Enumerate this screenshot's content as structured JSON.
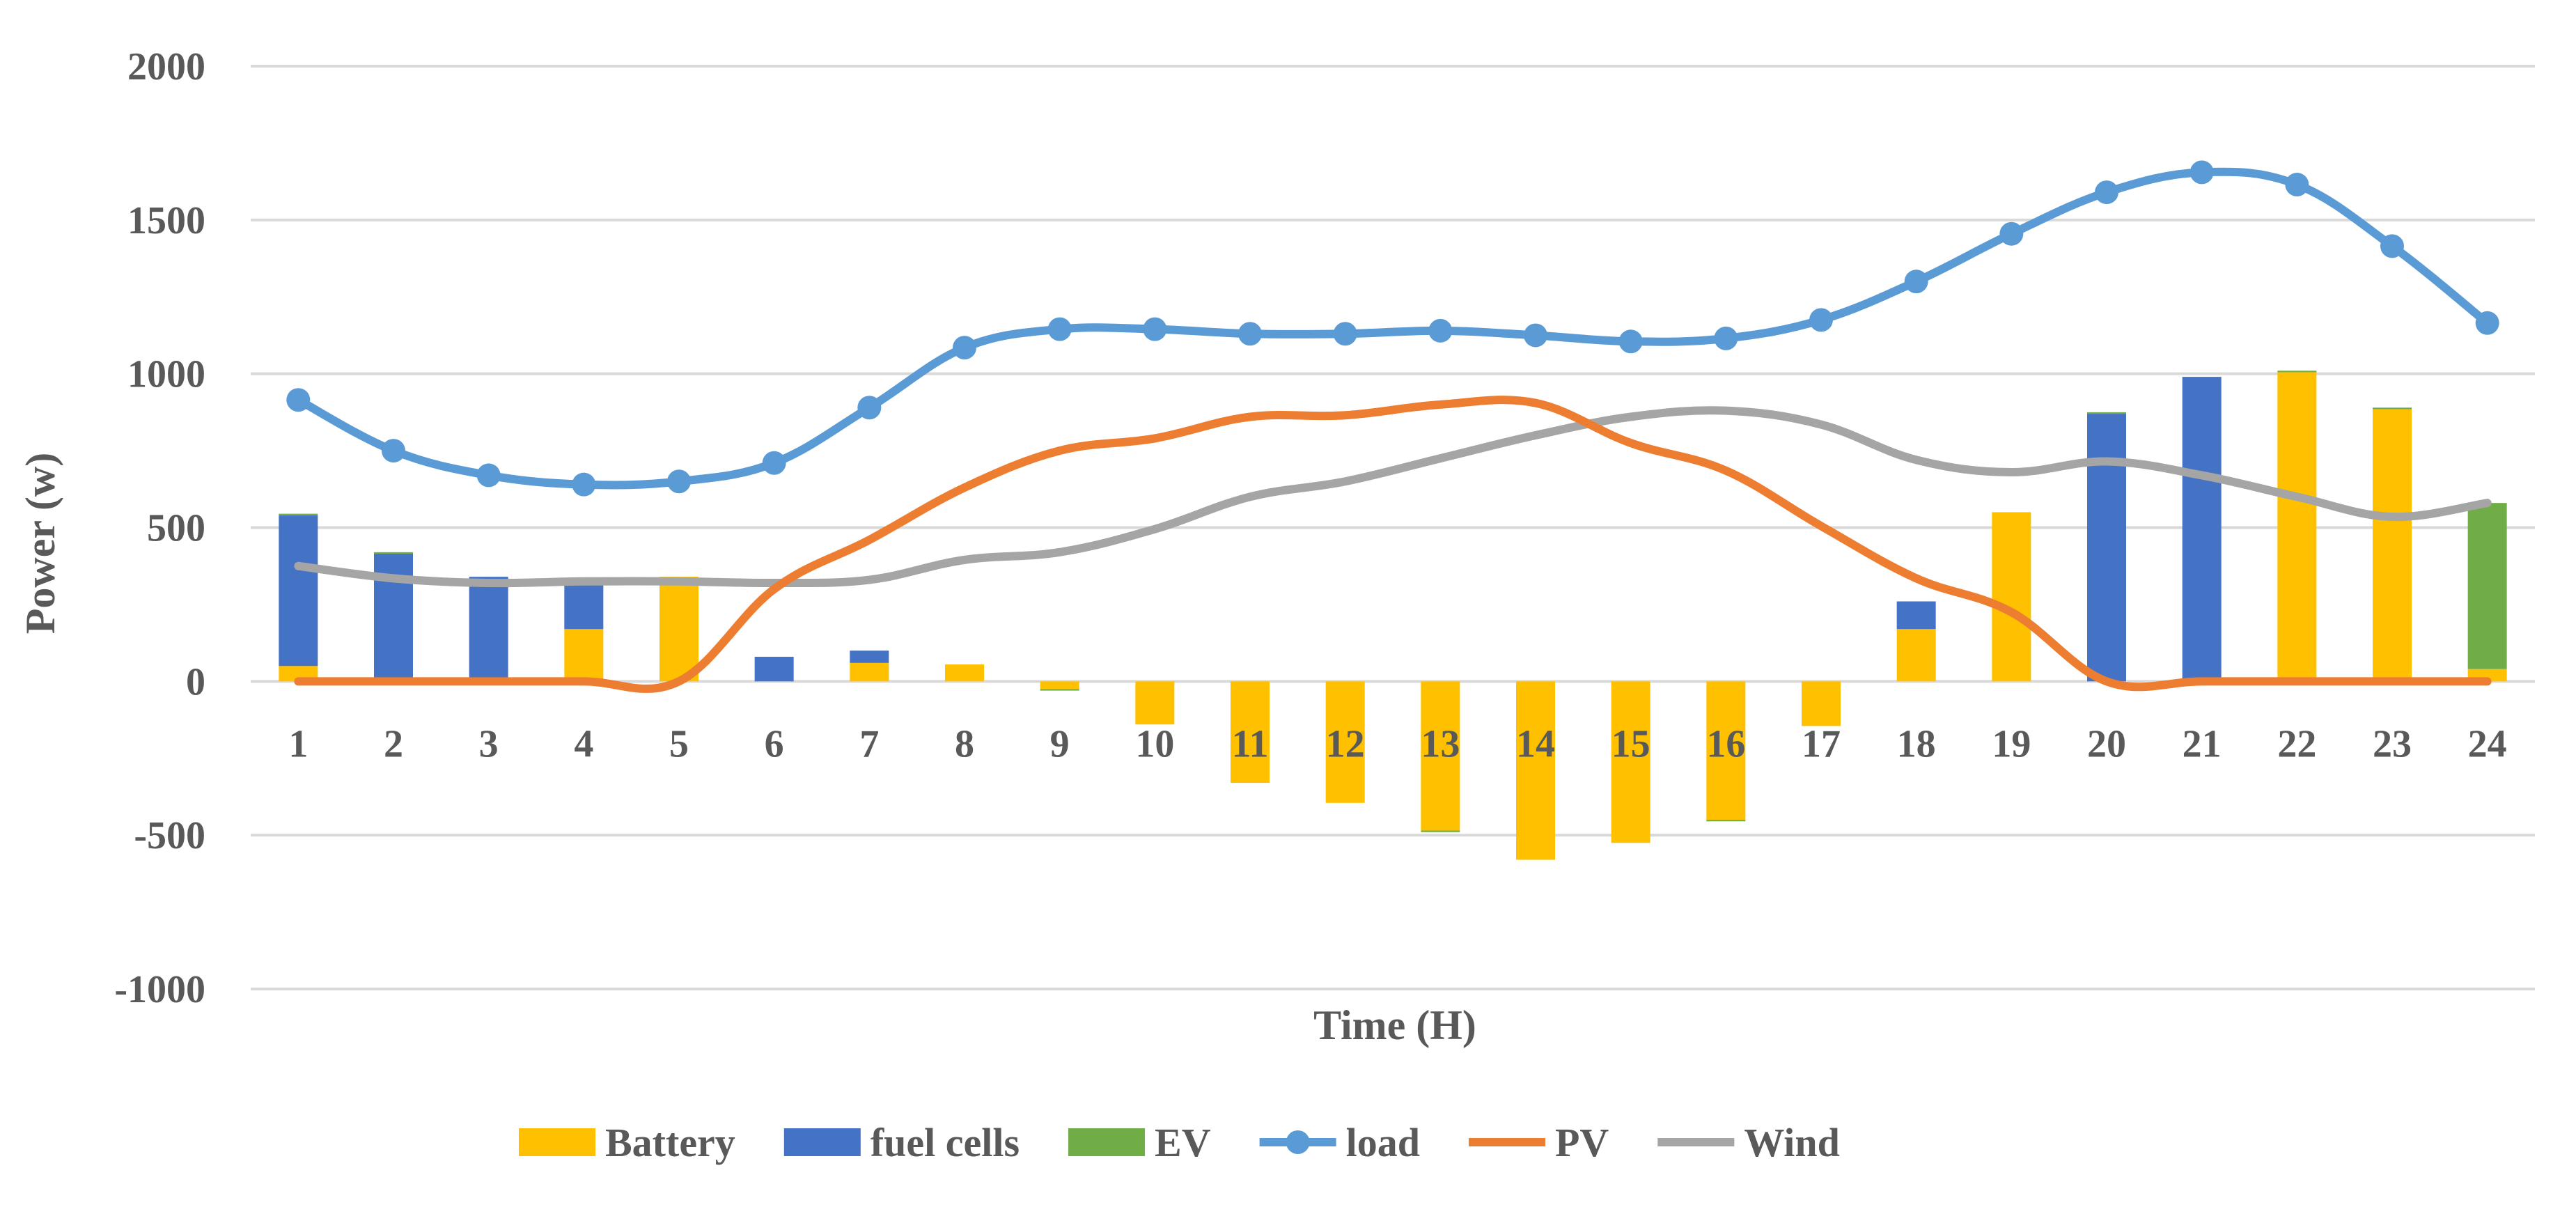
{
  "chart_data": {
    "type": "bar",
    "stacked": true,
    "title": "",
    "xlabel": "Time (H)",
    "ylabel": "Power (w)",
    "ylim": [
      -1000,
      2000
    ],
    "yticks": [
      2000,
      1500,
      1000,
      500,
      0,
      -500,
      -1000
    ],
    "grid": true,
    "categories": [
      "1",
      "2",
      "3",
      "4",
      "5",
      "6",
      "7",
      "8",
      "9",
      "10",
      "11",
      "12",
      "13",
      "14",
      "15",
      "16",
      "17",
      "18",
      "19",
      "20",
      "21",
      "22",
      "23",
      "24"
    ],
    "bar_series": [
      {
        "name": "Battery",
        "color": "#FFC000",
        "values": [
          50,
          0,
          0,
          170,
          340,
          0,
          60,
          55,
          -25,
          -140,
          -330,
          -395,
          -485,
          -580,
          -525,
          -450,
          -145,
          170,
          550,
          0,
          0,
          1005,
          885,
          40
        ]
      },
      {
        "name": "fuel cells",
        "color": "#4472C4",
        "values": [
          490,
          415,
          340,
          150,
          0,
          80,
          40,
          0,
          0,
          0,
          0,
          0,
          0,
          0,
          0,
          0,
          0,
          90,
          0,
          870,
          990,
          0,
          0,
          0
        ]
      },
      {
        "name": "EV",
        "color": "#70AD47",
        "values": [
          5,
          5,
          0,
          0,
          0,
          0,
          0,
          0,
          -5,
          0,
          0,
          0,
          -5,
          0,
          0,
          -5,
          0,
          0,
          0,
          5,
          0,
          5,
          5,
          540
        ]
      }
    ],
    "line_series": [
      {
        "name": "load",
        "color": "#5B9BD5",
        "markers": true,
        "values": [
          915,
          750,
          670,
          640,
          650,
          710,
          890,
          1085,
          1145,
          1145,
          1130,
          1130,
          1140,
          1125,
          1105,
          1115,
          1175,
          1300,
          1455,
          1590,
          1655,
          1615,
          1415,
          1165
        ]
      },
      {
        "name": "PV",
        "color": "#ED7D31",
        "markers": false,
        "values": [
          0,
          0,
          0,
          0,
          0,
          300,
          460,
          630,
          750,
          790,
          860,
          865,
          900,
          905,
          775,
          685,
          505,
          335,
          225,
          0,
          0,
          0,
          0,
          0
        ]
      },
      {
        "name": "Wind",
        "color": "#A5A5A5",
        "markers": false,
        "values": [
          375,
          335,
          320,
          325,
          325,
          320,
          330,
          395,
          420,
          495,
          600,
          650,
          725,
          800,
          860,
          880,
          835,
          720,
          680,
          715,
          670,
          600,
          535,
          580
        ]
      }
    ],
    "legend": {
      "position": "bottom",
      "entries": [
        {
          "label": "Battery",
          "kind": "bar",
          "color": "#FFC000"
        },
        {
          "label": "fuel cells",
          "kind": "bar",
          "color": "#4472C4"
        },
        {
          "label": "EV",
          "kind": "bar",
          "color": "#70AD47"
        },
        {
          "label": "load",
          "kind": "line-marker",
          "color": "#5B9BD5"
        },
        {
          "label": "PV",
          "kind": "line",
          "color": "#ED7D31"
        },
        {
          "label": "Wind",
          "kind": "line",
          "color": "#A5A5A5"
        }
      ]
    },
    "colors": {
      "grid": "#D9D9D9",
      "axis_text": "#595959"
    }
  }
}
